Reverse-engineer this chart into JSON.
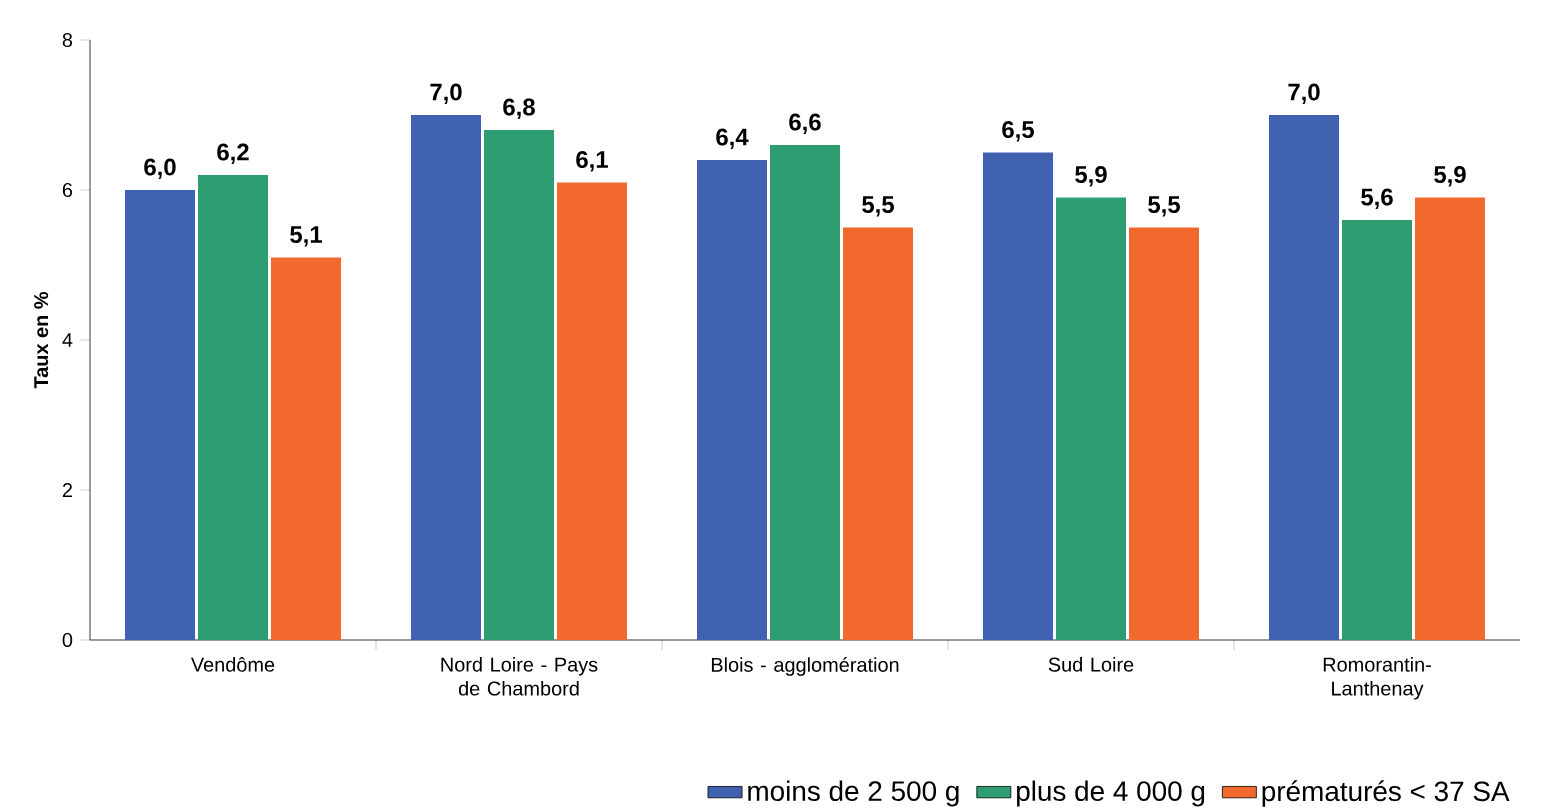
{
  "chart_data": {
    "type": "bar",
    "ylabel": "Taux en %",
    "categories": [
      "Vendôme",
      "Nord Loire - Pays de Chambord",
      "Blois - agglomération",
      "Sud Loire",
      "Romorantin-Lanthenay"
    ],
    "series": [
      {
        "name": "moins de 2 500 g",
        "color": "#4060b0",
        "values": [
          6.0,
          7.0,
          6.4,
          6.5,
          7.0
        ],
        "value_labels": [
          "6,0",
          "7,0",
          "6,4",
          "6,5",
          "7,0"
        ]
      },
      {
        "name": "plus de 4 000 g",
        "color": "#2e9e72",
        "values": [
          6.2,
          6.8,
          6.6,
          5.9,
          5.6
        ],
        "value_labels": [
          "6,2",
          "6,8",
          "6,6",
          "5,9",
          "5,6"
        ]
      },
      {
        "name": "prématurés < 37 SA",
        "color": "#f2692e",
        "values": [
          5.1,
          6.1,
          5.5,
          5.5,
          5.9
        ],
        "value_labels": [
          "5,1",
          "6,1",
          "5,5",
          "5,5",
          "5,9"
        ]
      }
    ],
    "ylim": [
      0,
      8
    ],
    "yticks": [
      0,
      2,
      4,
      6,
      8
    ],
    "grid": false,
    "legend": "bottom right"
  }
}
